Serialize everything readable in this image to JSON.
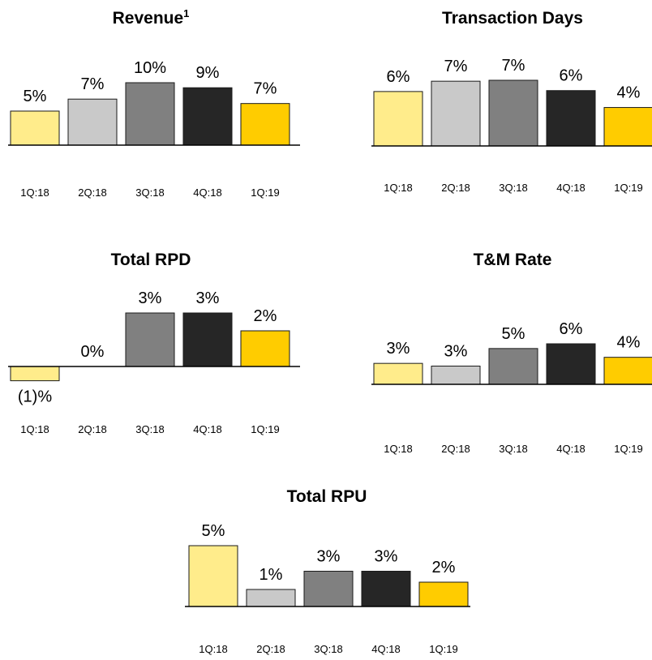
{
  "chart_data": [
    {
      "type": "bar",
      "title": "Revenue",
      "title_footnote": "1",
      "categories": [
        "1Q:18",
        "2Q:18",
        "3Q:18",
        "4Q:18",
        "1Q:19"
      ],
      "values": [
        5.4,
        7.3,
        9.9,
        9.1,
        6.6
      ],
      "value_labels": [
        "5%",
        "7%",
        "10%",
        "9%",
        "7%"
      ],
      "colors": [
        "#ffec8b",
        "#c9c9c9",
        "#808080",
        "#262626",
        "#ffcc00"
      ]
    },
    {
      "type": "bar",
      "title": "Transaction Days",
      "categories": [
        "1Q:18",
        "2Q:18",
        "3Q:18",
        "4Q:18",
        "1Q:19"
      ],
      "values": [
        5.8,
        6.9,
        7.0,
        5.9,
        4.1
      ],
      "value_labels": [
        "6%",
        "7%",
        "7%",
        "6%",
        "4%"
      ],
      "colors": [
        "#ffec8b",
        "#c9c9c9",
        "#808080",
        "#262626",
        "#ffcc00"
      ]
    },
    {
      "type": "bar",
      "title": "Total RPD",
      "categories": [
        "1Q:18",
        "2Q:18",
        "3Q:18",
        "4Q:18",
        "1Q:19"
      ],
      "values": [
        -0.8,
        0,
        3.0,
        3.0,
        2.0
      ],
      "value_labels": [
        "(1)%",
        "0%",
        "3%",
        "3%",
        "2%"
      ],
      "colors": [
        "#ffec8b",
        "#c9c9c9",
        "#808080",
        "#262626",
        "#ffcc00"
      ]
    },
    {
      "type": "bar",
      "title": "T&M Rate",
      "categories": [
        "1Q:18",
        "2Q:18",
        "3Q:18",
        "4Q:18",
        "1Q:19"
      ],
      "values": [
        3.1,
        2.7,
        5.3,
        6.0,
        4.0
      ],
      "value_labels": [
        "3%",
        "3%",
        "5%",
        "6%",
        "4%"
      ],
      "colors": [
        "#ffec8b",
        "#c9c9c9",
        "#808080",
        "#262626",
        "#ffcc00"
      ]
    },
    {
      "type": "bar",
      "title": "Total RPU",
      "categories": [
        "1Q:18",
        "2Q:18",
        "3Q:18",
        "4Q:18",
        "1Q:19"
      ],
      "values": [
        5.0,
        1.4,
        2.9,
        2.9,
        2.0
      ],
      "value_labels": [
        "5%",
        "1%",
        "3%",
        "3%",
        "2%"
      ],
      "colors": [
        "#ffec8b",
        "#c9c9c9",
        "#808080",
        "#262626",
        "#ffcc00"
      ]
    }
  ]
}
